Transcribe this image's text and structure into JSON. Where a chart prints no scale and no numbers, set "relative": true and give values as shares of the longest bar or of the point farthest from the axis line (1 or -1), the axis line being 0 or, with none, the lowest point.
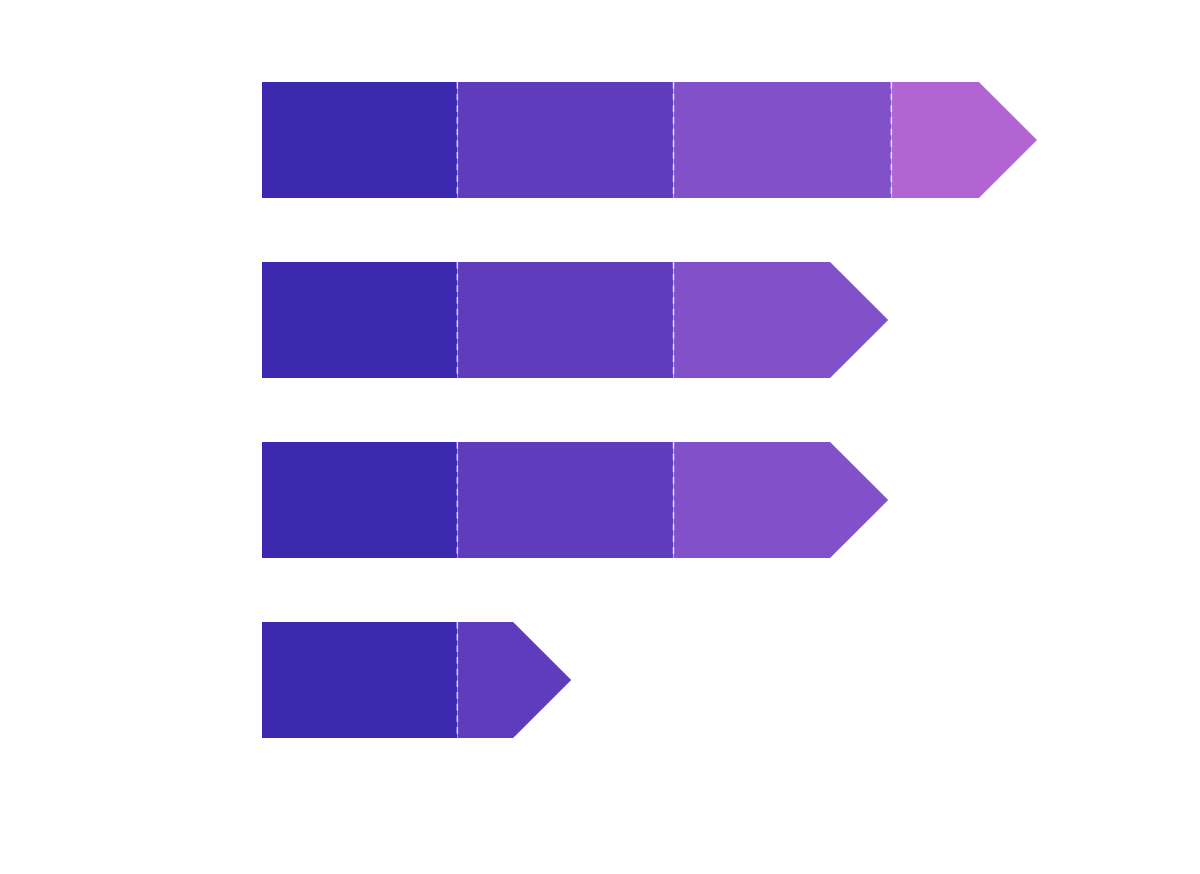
{
  "chart_data": {
    "type": "bar",
    "orientation": "horizontal",
    "stacked": true,
    "relative": true,
    "categories": [
      null,
      null,
      null,
      null
    ],
    "series": [
      {
        "color": "#3d29b0",
        "values": [
          0.252,
          0.252,
          0.252,
          0.252
        ]
      },
      {
        "color": "#5e3cbc",
        "values": [
          0.279,
          0.279,
          0.279,
          0.147
        ]
      },
      {
        "color": "#8250c8",
        "values": [
          0.281,
          0.277,
          0.277,
          null
        ]
      },
      {
        "color": "#b265d2",
        "values": [
          0.188,
          null,
          null,
          null
        ]
      }
    ]
  }
}
